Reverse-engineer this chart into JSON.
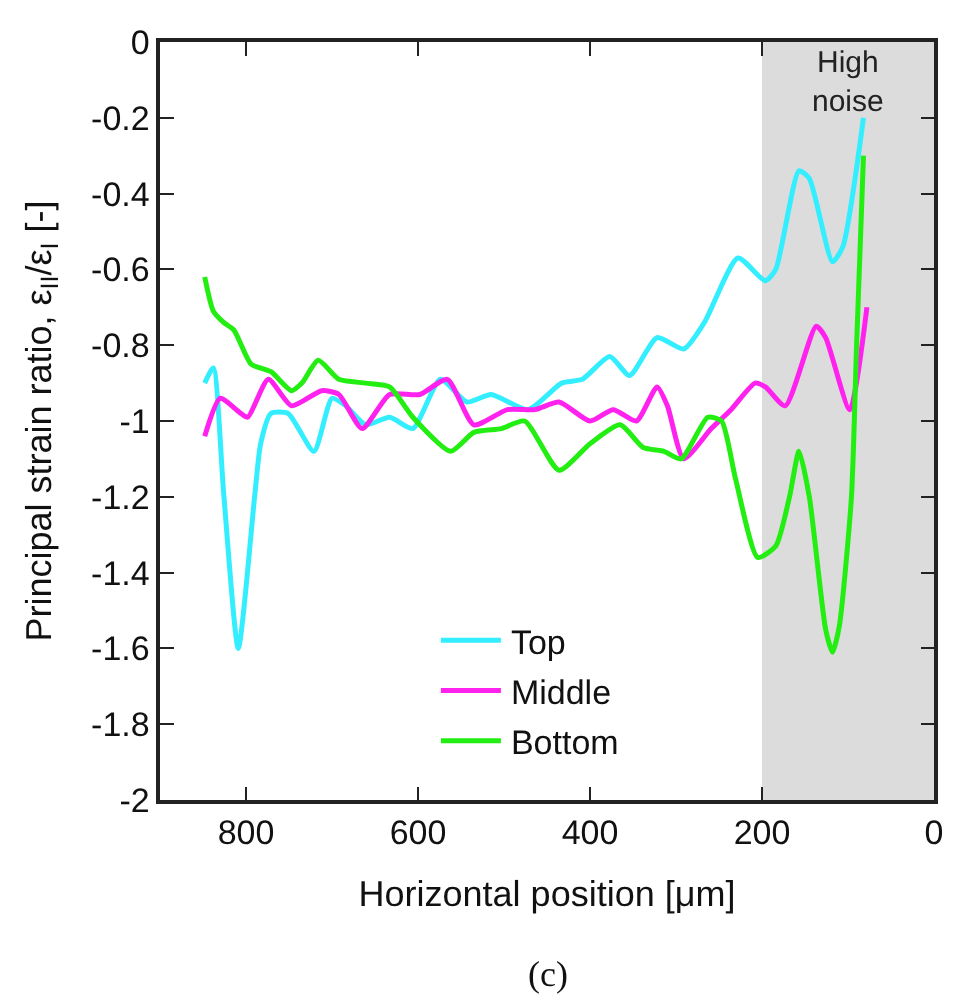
{
  "chart_data": {
    "type": "line",
    "xlabel": "Horizontal position [μm]",
    "ylabel": "Principal strain ratio, ε$_{II}$/ε$_{I}$ [-]",
    "xlim": [
      900,
      0
    ],
    "xticks": [
      800,
      600,
      400,
      200,
      0
    ],
    "ylim": [
      -2,
      0
    ],
    "yticks": [
      -2,
      -1.8,
      -1.6,
      -1.4,
      -1.2,
      -1,
      -0.8,
      -0.6,
      -0.4,
      -0.2,
      0
    ],
    "grid": false,
    "legend": "bottom",
    "line_style": "solid",
    "marker": "none",
    "bands": [
      {
        "axis": "x",
        "from": 200,
        "to": 0,
        "label": "High noise",
        "color": "#dcdcdc"
      }
    ],
    "annotations": [
      "(c)"
    ],
    "series": [
      {
        "name": "Top",
        "color": "#33eeff",
        "x": [
          848,
          838,
          826,
          809,
          790,
          783,
          771,
          751,
          721,
          700,
          684,
          661,
          633,
          606,
          574,
          543,
          515,
          472,
          433,
          409,
          377,
          354,
          322,
          291,
          267,
          228,
          196,
          184,
          157,
          145,
          118,
          106,
          82
        ],
        "values": [
          -0.9,
          -0.86,
          -1.19,
          -1.6,
          -1.2,
          -1.06,
          -0.98,
          -0.98,
          -1.08,
          -0.94,
          -0.96,
          -1.01,
          -0.99,
          -1.02,
          -0.89,
          -0.95,
          -0.93,
          -0.97,
          -0.9,
          -0.89,
          -0.83,
          -0.88,
          -0.78,
          -0.81,
          -0.74,
          -0.57,
          -0.63,
          -0.6,
          -0.34,
          -0.36,
          -0.58,
          -0.54,
          -0.2
        ]
      },
      {
        "name": "Middle",
        "color": "#ff22ee",
        "x": [
          848,
          830,
          806,
          798,
          774,
          747,
          712,
          692,
          665,
          633,
          598,
          566,
          535,
          496,
          464,
          436,
          400,
          373,
          346,
          322,
          310,
          291,
          259,
          236,
          208,
          196,
          173,
          137,
          126,
          98,
          78
        ],
        "values": [
          -1.04,
          -0.94,
          -0.98,
          -0.99,
          -0.89,
          -0.96,
          -0.92,
          -0.93,
          -1.02,
          -0.93,
          -0.93,
          -0.89,
          -1.01,
          -0.97,
          -0.97,
          -0.95,
          -1,
          -0.97,
          -1,
          -0.91,
          -0.96,
          -1.1,
          -1.02,
          -0.97,
          -0.9,
          -0.91,
          -0.96,
          -0.75,
          -0.78,
          -0.97,
          -0.7
        ]
      },
      {
        "name": "Bottom",
        "color": "#22ee11",
        "x": [
          848,
          838,
          826,
          814,
          794,
          771,
          747,
          735,
          716,
          692,
          661,
          633,
          606,
          562,
          535,
          503,
          476,
          436,
          400,
          365,
          338,
          314,
          294,
          263,
          247,
          231,
          205,
          184,
          168,
          157,
          145,
          126,
          118,
          110,
          96,
          90,
          82
        ],
        "values": [
          -0.62,
          -0.71,
          -0.74,
          -0.76,
          -0.85,
          -0.87,
          -0.92,
          -0.9,
          -0.84,
          -0.89,
          -0.9,
          -0.91,
          -0.99,
          -1.08,
          -1.03,
          -1.02,
          -1,
          -1.13,
          -1.06,
          -1.01,
          -1.07,
          -1.08,
          -1.1,
          -0.99,
          -1,
          -1.15,
          -1.36,
          -1.33,
          -1.2,
          -1.08,
          -1.2,
          -1.55,
          -1.61,
          -1.54,
          -1.2,
          -0.8,
          -0.3
        ]
      }
    ]
  }
}
